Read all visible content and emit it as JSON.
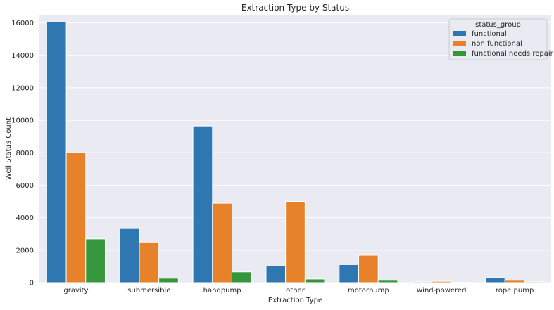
{
  "chart_data": {
    "type": "bar",
    "title": "Extraction Type by Status",
    "xlabel": "Extraction Type",
    "ylabel": "Well Status Count",
    "categories": [
      "gravity",
      "submersible",
      "handpump",
      "other",
      "motorpump",
      "wind-powered",
      "rope pump"
    ],
    "series": [
      {
        "name": "functional",
        "color": "#2f77b1",
        "values": [
          16050,
          3330,
          9650,
          1020,
          1110,
          50,
          300
        ]
      },
      {
        "name": "non functional",
        "color": "#e8822a",
        "values": [
          8000,
          2500,
          4890,
          5000,
          1690,
          80,
          140
        ]
      },
      {
        "name": "functional needs repair",
        "color": "#35963c",
        "values": [
          2690,
          270,
          660,
          220,
          140,
          20,
          50
        ]
      }
    ],
    "ylim": [
      0,
      16500
    ],
    "yticks": [
      0,
      2000,
      4000,
      6000,
      8000,
      10000,
      12000,
      14000,
      16000
    ],
    "grid": true,
    "legend": {
      "title": "status_group",
      "placement": "top-right"
    },
    "colors": {
      "plot_background": "#eaeaf2",
      "grid": "#ffffff"
    }
  }
}
